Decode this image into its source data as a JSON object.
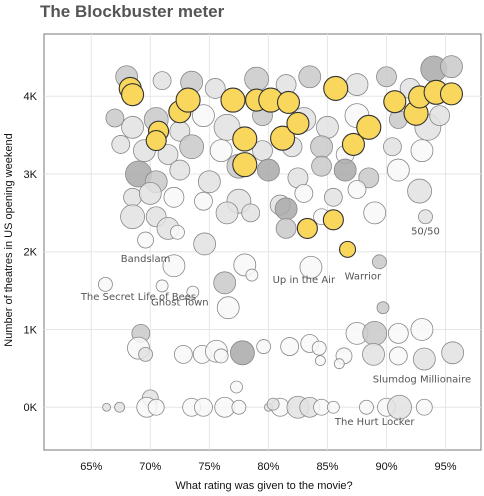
{
  "title": "The Blockbuster meter",
  "chart_data": {
    "type": "scatter",
    "title": "The Blockbuster meter",
    "xlabel": "What rating was given to the movie?",
    "ylabel": "Number of theatres in US opening weekend",
    "xlim": [
      61,
      98
    ],
    "ylim": [
      -550,
      4800
    ],
    "x_ticks": [
      65,
      70,
      75,
      80,
      85,
      90,
      95
    ],
    "x_tick_labels": [
      "65%",
      "70%",
      "75%",
      "80%",
      "85%",
      "90%",
      "95%"
    ],
    "y_ticks": [
      0,
      1000,
      2000,
      3000,
      4000
    ],
    "y_tick_labels": [
      "0K",
      "1K",
      "2K",
      "3K",
      "4K"
    ],
    "grid": true,
    "legend": "none",
    "colors": {
      "highlight": "#f9d65c",
      "highlight_stroke": "#333333",
      "dark_grey": "#a9a9a9",
      "mid_grey": "#c9c9c9",
      "light_grey": "#e2e2e2",
      "white": "#f8f8f8",
      "bubble_stroke": "#888888",
      "plot_border": "#777777"
    },
    "annotations": [
      {
        "text": "Bandslam",
        "x": 69.6,
        "y": 1870
      },
      {
        "text": "The Secret Life of Bees",
        "x": 69.0,
        "y": 1380
      },
      {
        "text": "Ghost Town",
        "x": 72.5,
        "y": 1310
      },
      {
        "text": "Up in the Air",
        "x": 83.0,
        "y": 1600
      },
      {
        "text": "Warrior",
        "x": 88.0,
        "y": 1640
      },
      {
        "text": "50/50",
        "x": 93.3,
        "y": 2220
      },
      {
        "text": "Slumdog Millionaire",
        "x": 93.0,
        "y": 320
      },
      {
        "text": "The Hurt Locker",
        "x": 89.0,
        "y": -230
      }
    ],
    "points": [
      {
        "x": 68.0,
        "y": 4250,
        "r": 11,
        "shade": "mid_grey"
      },
      {
        "x": 71.0,
        "y": 4200,
        "r": 9,
        "shade": "light_grey"
      },
      {
        "x": 73.5,
        "y": 4180,
        "r": 11,
        "shade": "mid_grey"
      },
      {
        "x": 75.5,
        "y": 4100,
        "r": 10,
        "shade": "light_grey"
      },
      {
        "x": 79.0,
        "y": 4220,
        "r": 12,
        "shade": "mid_grey"
      },
      {
        "x": 81.5,
        "y": 4150,
        "r": 10,
        "shade": "light_grey"
      },
      {
        "x": 83.5,
        "y": 4250,
        "r": 11,
        "shade": "mid_grey"
      },
      {
        "x": 87.5,
        "y": 4150,
        "r": 11,
        "shade": "light_grey"
      },
      {
        "x": 90.0,
        "y": 4250,
        "r": 10,
        "shade": "mid_grey"
      },
      {
        "x": 92.0,
        "y": 4100,
        "r": 10,
        "shade": "light_grey"
      },
      {
        "x": 94.0,
        "y": 4350,
        "r": 13,
        "shade": "dark_grey"
      },
      {
        "x": 95.5,
        "y": 4380,
        "r": 11,
        "shade": "mid_grey"
      },
      {
        "x": 67.0,
        "y": 3720,
        "r": 9,
        "shade": "mid_grey"
      },
      {
        "x": 68.5,
        "y": 3600,
        "r": 11,
        "shade": "light_grey"
      },
      {
        "x": 70.5,
        "y": 3700,
        "r": 12,
        "shade": "mid_grey"
      },
      {
        "x": 72.5,
        "y": 3550,
        "r": 10,
        "shade": "light_grey"
      },
      {
        "x": 74.5,
        "y": 3750,
        "r": 11,
        "shade": "white"
      },
      {
        "x": 76.5,
        "y": 3600,
        "r": 13,
        "shade": "light_grey"
      },
      {
        "x": 79.5,
        "y": 3750,
        "r": 10,
        "shade": "mid_grey"
      },
      {
        "x": 83.0,
        "y": 3700,
        "r": 12,
        "shade": "light_grey"
      },
      {
        "x": 85.0,
        "y": 3600,
        "r": 11,
        "shade": "light_grey"
      },
      {
        "x": 87.5,
        "y": 3750,
        "r": 12,
        "shade": "white"
      },
      {
        "x": 91.0,
        "y": 3700,
        "r": 9,
        "shade": "mid_grey"
      },
      {
        "x": 93.5,
        "y": 3600,
        "r": 13,
        "shade": "light_grey"
      },
      {
        "x": 94.5,
        "y": 3750,
        "r": 10,
        "shade": "light_grey"
      },
      {
        "x": 67.5,
        "y": 3380,
        "r": 9,
        "shade": "light_grey"
      },
      {
        "x": 69.5,
        "y": 3300,
        "r": 11,
        "shade": "light_grey"
      },
      {
        "x": 71.5,
        "y": 3250,
        "r": 10,
        "shade": "light_grey"
      },
      {
        "x": 73.5,
        "y": 3350,
        "r": 12,
        "shade": "mid_grey"
      },
      {
        "x": 76.0,
        "y": 3300,
        "r": 11,
        "shade": "white"
      },
      {
        "x": 79.5,
        "y": 3300,
        "r": 10,
        "shade": "light_grey"
      },
      {
        "x": 82.0,
        "y": 3350,
        "r": 10,
        "shade": "light_grey"
      },
      {
        "x": 84.5,
        "y": 3350,
        "r": 11,
        "shade": "mid_grey"
      },
      {
        "x": 86.5,
        "y": 3250,
        "r": 9,
        "shade": "white"
      },
      {
        "x": 90.5,
        "y": 3350,
        "r": 9,
        "shade": "light_grey"
      },
      {
        "x": 93.0,
        "y": 3300,
        "r": 11,
        "shade": "white"
      },
      {
        "x": 69.0,
        "y": 3000,
        "r": 13,
        "shade": "dark_grey"
      },
      {
        "x": 70.5,
        "y": 2900,
        "r": 11,
        "shade": "mid_grey"
      },
      {
        "x": 72.5,
        "y": 3050,
        "r": 10,
        "shade": "light_grey"
      },
      {
        "x": 75.0,
        "y": 2900,
        "r": 11,
        "shade": "light_grey"
      },
      {
        "x": 77.5,
        "y": 3100,
        "r": 12,
        "shade": "mid_grey"
      },
      {
        "x": 80.0,
        "y": 3050,
        "r": 11,
        "shade": "dark_grey"
      },
      {
        "x": 82.5,
        "y": 2950,
        "r": 10,
        "shade": "light_grey"
      },
      {
        "x": 84.5,
        "y": 3100,
        "r": 10,
        "shade": "mid_grey"
      },
      {
        "x": 86.5,
        "y": 3050,
        "r": 11,
        "shade": "dark_grey"
      },
      {
        "x": 88.5,
        "y": 2950,
        "r": 10,
        "shade": "mid_grey"
      },
      {
        "x": 91.0,
        "y": 3050,
        "r": 11,
        "shade": "white"
      },
      {
        "x": 92.8,
        "y": 2780,
        "r": 12,
        "shade": "light_grey"
      },
      {
        "x": 68.5,
        "y": 2700,
        "r": 9,
        "shade": "light_grey"
      },
      {
        "x": 70.0,
        "y": 2750,
        "r": 11,
        "shade": "light_grey"
      },
      {
        "x": 72.0,
        "y": 2700,
        "r": 10,
        "shade": "white"
      },
      {
        "x": 74.5,
        "y": 2650,
        "r": 9,
        "shade": "white"
      },
      {
        "x": 77.5,
        "y": 2650,
        "r": 12,
        "shade": "light_grey"
      },
      {
        "x": 81.0,
        "y": 2600,
        "r": 10,
        "shade": "light_grey"
      },
      {
        "x": 83.0,
        "y": 2750,
        "r": 9,
        "shade": "white"
      },
      {
        "x": 85.5,
        "y": 2700,
        "r": 9,
        "shade": "light_grey"
      },
      {
        "x": 87.5,
        "y": 2800,
        "r": 9,
        "shade": "white"
      },
      {
        "x": 68.5,
        "y": 2450,
        "r": 12,
        "shade": "light_grey"
      },
      {
        "x": 70.5,
        "y": 2450,
        "r": 10,
        "shade": "light_grey"
      },
      {
        "x": 71.5,
        "y": 2300,
        "r": 11,
        "shade": "light_grey"
      },
      {
        "x": 76.5,
        "y": 2500,
        "r": 11,
        "shade": "light_grey"
      },
      {
        "x": 78.5,
        "y": 2500,
        "r": 9,
        "shade": "light_grey"
      },
      {
        "x": 81.5,
        "y": 2550,
        "r": 11,
        "shade": "dark_grey"
      },
      {
        "x": 81.5,
        "y": 2300,
        "r": 10,
        "shade": "mid_grey"
      },
      {
        "x": 84.5,
        "y": 2450,
        "r": 8,
        "shade": "white"
      },
      {
        "x": 89.0,
        "y": 2500,
        "r": 11,
        "shade": "white"
      },
      {
        "x": 93.3,
        "y": 2450,
        "r": 7,
        "shade": "light_grey"
      },
      {
        "x": 69.6,
        "y": 2150,
        "r": 8,
        "shade": "white"
      },
      {
        "x": 72.3,
        "y": 2250,
        "r": 7,
        "shade": "white"
      },
      {
        "x": 74.6,
        "y": 2100,
        "r": 11,
        "shade": "light_grey"
      },
      {
        "x": 72.0,
        "y": 1820,
        "r": 11,
        "shade": "white"
      },
      {
        "x": 78.0,
        "y": 1830,
        "r": 11,
        "shade": "white"
      },
      {
        "x": 83.6,
        "y": 1800,
        "r": 11,
        "shade": "white"
      },
      {
        "x": 89.4,
        "y": 1870,
        "r": 7,
        "shade": "mid_grey"
      },
      {
        "x": 66.2,
        "y": 1580,
        "r": 7,
        "shade": "white"
      },
      {
        "x": 71.0,
        "y": 1560,
        "r": 6,
        "shade": "white"
      },
      {
        "x": 73.6,
        "y": 1480,
        "r": 6,
        "shade": "white"
      },
      {
        "x": 76.3,
        "y": 1600,
        "r": 11,
        "shade": "mid_grey"
      },
      {
        "x": 78.6,
        "y": 1700,
        "r": 6,
        "shade": "white"
      },
      {
        "x": 76.6,
        "y": 1280,
        "r": 11,
        "shade": "white"
      },
      {
        "x": 89.7,
        "y": 1280,
        "r": 6,
        "shade": "mid_grey"
      },
      {
        "x": 69.2,
        "y": 950,
        "r": 9,
        "shade": "mid_grey"
      },
      {
        "x": 87.5,
        "y": 950,
        "r": 11,
        "shade": "white"
      },
      {
        "x": 89.0,
        "y": 950,
        "r": 12,
        "shade": "mid_grey"
      },
      {
        "x": 91.0,
        "y": 950,
        "r": 10,
        "shade": "white"
      },
      {
        "x": 93.0,
        "y": 1000,
        "r": 11,
        "shade": "white"
      },
      {
        "x": 69.0,
        "y": 760,
        "r": 11,
        "shade": "white"
      },
      {
        "x": 69.6,
        "y": 680,
        "r": 7,
        "shade": "light_grey"
      },
      {
        "x": 72.8,
        "y": 680,
        "r": 9,
        "shade": "white"
      },
      {
        "x": 74.4,
        "y": 680,
        "r": 9,
        "shade": "white"
      },
      {
        "x": 75.6,
        "y": 720,
        "r": 11,
        "shade": "white"
      },
      {
        "x": 76.0,
        "y": 660,
        "r": 7,
        "shade": "white"
      },
      {
        "x": 77.8,
        "y": 700,
        "r": 12,
        "shade": "dark_grey"
      },
      {
        "x": 79.6,
        "y": 780,
        "r": 7,
        "shade": "white"
      },
      {
        "x": 81.8,
        "y": 780,
        "r": 9,
        "shade": "white"
      },
      {
        "x": 83.5,
        "y": 820,
        "r": 9,
        "shade": "white"
      },
      {
        "x": 84.3,
        "y": 760,
        "r": 7,
        "shade": "white"
      },
      {
        "x": 86.4,
        "y": 660,
        "r": 8,
        "shade": "white"
      },
      {
        "x": 88.9,
        "y": 680,
        "r": 11,
        "shade": "light_grey"
      },
      {
        "x": 91.0,
        "y": 660,
        "r": 9,
        "shade": "white"
      },
      {
        "x": 93.2,
        "y": 620,
        "r": 11,
        "shade": "light_grey"
      },
      {
        "x": 95.6,
        "y": 700,
        "r": 11,
        "shade": "light_grey"
      },
      {
        "x": 84.4,
        "y": 600,
        "r": 5,
        "shade": "white"
      },
      {
        "x": 86.0,
        "y": 560,
        "r": 5,
        "shade": "white"
      },
      {
        "x": 70.0,
        "y": 120,
        "r": 8,
        "shade": "light_grey"
      },
      {
        "x": 69.7,
        "y": 0,
        "r": 10,
        "shade": "white"
      },
      {
        "x": 70.5,
        "y": 0,
        "r": 8,
        "shade": "white"
      },
      {
        "x": 73.5,
        "y": 0,
        "r": 9,
        "shade": "white"
      },
      {
        "x": 74.5,
        "y": 0,
        "r": 9,
        "shade": "white"
      },
      {
        "x": 76.3,
        "y": 0,
        "r": 10,
        "shade": "white"
      },
      {
        "x": 77.5,
        "y": 0,
        "r": 7,
        "shade": "white"
      },
      {
        "x": 81.0,
        "y": 0,
        "r": 9,
        "shade": "white"
      },
      {
        "x": 82.5,
        "y": 0,
        "r": 11,
        "shade": "light_grey"
      },
      {
        "x": 83.5,
        "y": 0,
        "r": 10,
        "shade": "light_grey"
      },
      {
        "x": 84.5,
        "y": 0,
        "r": 8,
        "shade": "white"
      },
      {
        "x": 85.5,
        "y": 0,
        "r": 6,
        "shade": "white"
      },
      {
        "x": 88.3,
        "y": 0,
        "r": 7,
        "shade": "white"
      },
      {
        "x": 90.0,
        "y": 0,
        "r": 9,
        "shade": "white"
      },
      {
        "x": 91.1,
        "y": 0,
        "r": 12,
        "shade": "light_grey"
      },
      {
        "x": 93.2,
        "y": 0,
        "r": 8,
        "shade": "white"
      },
      {
        "x": 77.3,
        "y": 260,
        "r": 6,
        "shade": "white"
      },
      {
        "x": 66.3,
        "y": 0,
        "r": 4,
        "shade": "light_grey"
      },
      {
        "x": 67.4,
        "y": 0,
        "r": 5,
        "shade": "light_grey"
      },
      {
        "x": 80.0,
        "y": 0,
        "r": 4,
        "shade": "light_grey"
      },
      {
        "x": 80.4,
        "y": 40,
        "r": 6,
        "shade": "light_grey"
      },
      {
        "x": 68.3,
        "y": 4100,
        "r": 11,
        "shade": "highlight"
      },
      {
        "x": 68.5,
        "y": 4020,
        "r": 11,
        "shade": "highlight"
      },
      {
        "x": 72.5,
        "y": 3800,
        "r": 11,
        "shade": "highlight"
      },
      {
        "x": 73.2,
        "y": 3950,
        "r": 12,
        "shade": "highlight"
      },
      {
        "x": 77.0,
        "y": 3950,
        "r": 12,
        "shade": "highlight"
      },
      {
        "x": 79.0,
        "y": 3950,
        "r": 11,
        "shade": "highlight"
      },
      {
        "x": 80.2,
        "y": 3950,
        "r": 12,
        "shade": "highlight"
      },
      {
        "x": 81.7,
        "y": 3920,
        "r": 11,
        "shade": "highlight"
      },
      {
        "x": 85.7,
        "y": 4100,
        "r": 12,
        "shade": "highlight"
      },
      {
        "x": 90.7,
        "y": 3930,
        "r": 11,
        "shade": "highlight"
      },
      {
        "x": 92.5,
        "y": 3780,
        "r": 12,
        "shade": "highlight"
      },
      {
        "x": 92.8,
        "y": 3990,
        "r": 11,
        "shade": "highlight"
      },
      {
        "x": 94.2,
        "y": 4050,
        "r": 12,
        "shade": "highlight"
      },
      {
        "x": 95.5,
        "y": 4030,
        "r": 11,
        "shade": "highlight"
      },
      {
        "x": 70.7,
        "y": 3550,
        "r": 10,
        "shade": "highlight"
      },
      {
        "x": 70.5,
        "y": 3430,
        "r": 10,
        "shade": "highlight"
      },
      {
        "x": 78.0,
        "y": 3450,
        "r": 12,
        "shade": "highlight"
      },
      {
        "x": 78.0,
        "y": 3120,
        "r": 12,
        "shade": "highlight"
      },
      {
        "x": 81.2,
        "y": 3460,
        "r": 12,
        "shade": "highlight"
      },
      {
        "x": 82.5,
        "y": 3650,
        "r": 11,
        "shade": "highlight"
      },
      {
        "x": 87.2,
        "y": 3380,
        "r": 11,
        "shade": "highlight"
      },
      {
        "x": 88.5,
        "y": 3600,
        "r": 12,
        "shade": "highlight"
      },
      {
        "x": 83.3,
        "y": 2300,
        "r": 10,
        "shade": "highlight"
      },
      {
        "x": 85.5,
        "y": 2410,
        "r": 10,
        "shade": "highlight"
      },
      {
        "x": 86.7,
        "y": 2030,
        "r": 8,
        "shade": "highlight"
      }
    ]
  }
}
